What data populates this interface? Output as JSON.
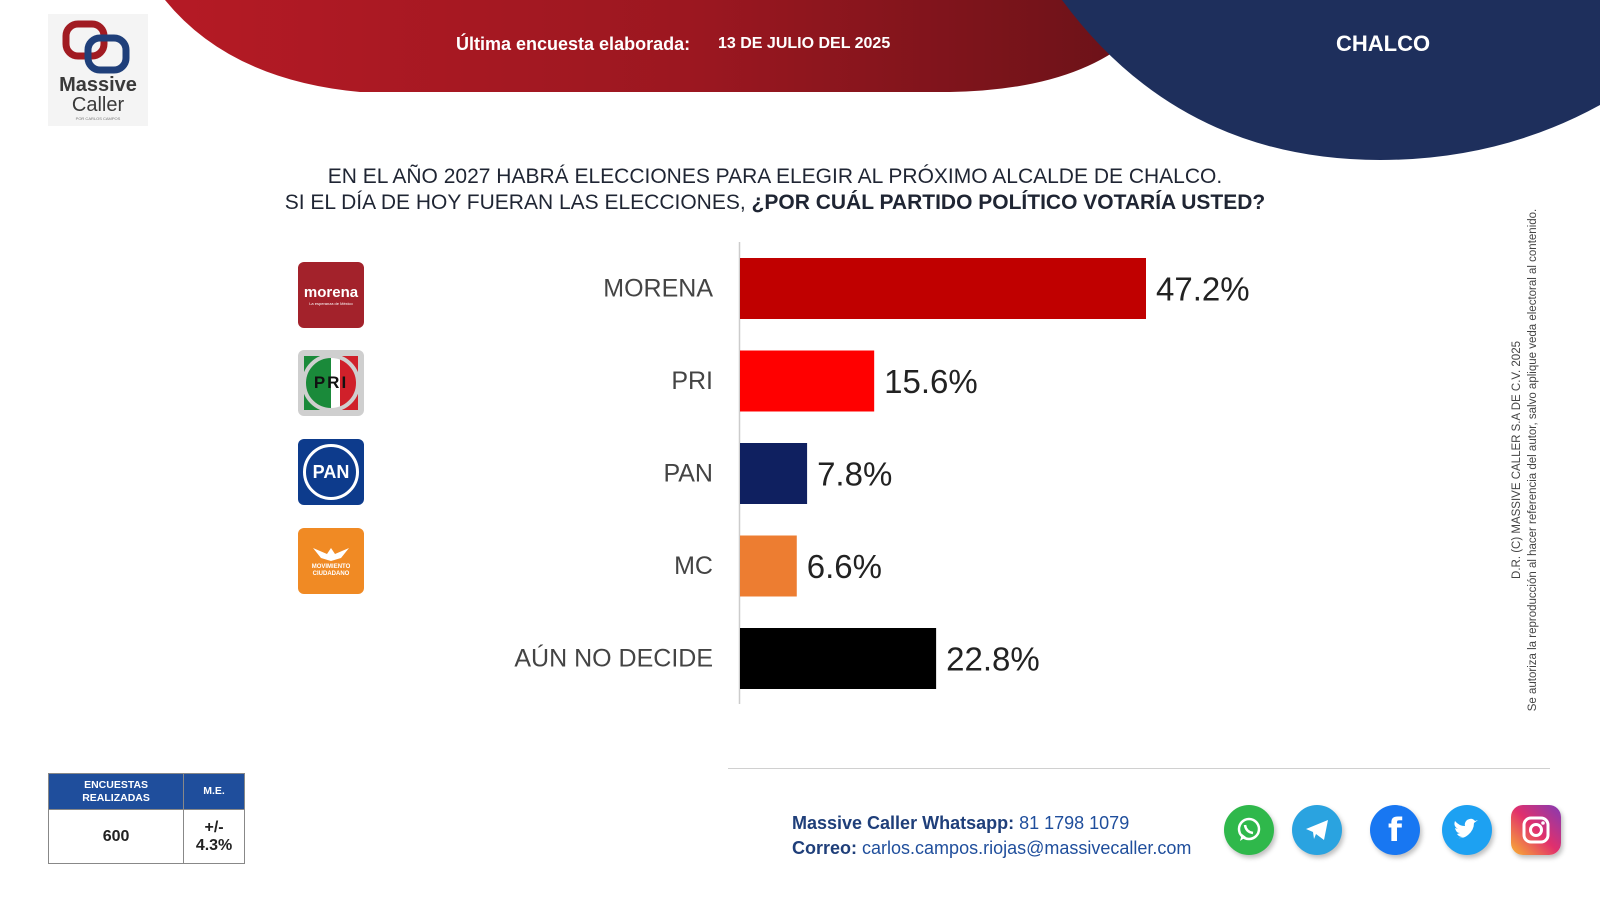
{
  "brand": {
    "name_line1": "Massive",
    "name_line2": "Caller",
    "tagline": "POR CARLOS CAMPOS"
  },
  "header": {
    "survey_label": "Última encuesta elaborada:",
    "survey_date": "13 DE JULIO DEL 2025",
    "city": "CHALCO"
  },
  "question": {
    "line1": "EN EL AÑO 2027 HABRÁ ELECCIONES PARA ELEGIR AL PRÓXIMO ALCALDE DE CHALCO.",
    "line2_plain": "SI EL DÍA DE HOY FUERAN LAS ELECCIONES, ",
    "line2_bold": "¿POR CUÁL PARTIDO POLÍTICO VOTARÍA USTED?"
  },
  "chart_data": {
    "type": "bar",
    "orientation": "horizontal",
    "categories": [
      "MORENA",
      "PRI",
      "PAN",
      "MC",
      "AÚN NO DECIDE"
    ],
    "values": [
      47.2,
      15.6,
      7.8,
      6.6,
      22.8
    ],
    "value_labels": [
      "47.2%",
      "15.6%",
      "7.8%",
      "6.6%",
      "22.8%"
    ],
    "colors": [
      "#c00000",
      "#ff0000",
      "#0f2060",
      "#ed7d31",
      "#000000"
    ],
    "xlim": [
      0,
      50
    ],
    "grid": false,
    "party_logos": [
      "morena",
      "pri",
      "pan",
      "mc",
      ""
    ]
  },
  "party_logo_text": {
    "morena": "morena",
    "morena_sub": "La esperanza de México",
    "pri": "PRI",
    "pan": "PAN",
    "mc": "MOVIMIENTO CIUDADANO"
  },
  "copyright": {
    "line1": "D.R. (C) MASSIVE CALLER S.A DE C.V. 2025",
    "line2": "Se autoriza la reproducción al hacer referencia del autor, salvo aplique veda electoral al contenido."
  },
  "stats": {
    "col1_header": "ENCUESTAS REALIZADAS",
    "col2_header": "M.E.",
    "col1_value": "600",
    "col2_value": "+/- 4.3%"
  },
  "contact": {
    "whatsapp_label": "Massive Caller Whatsapp:",
    "whatsapp_value": "81 1798 1079",
    "email_label": "Correo:",
    "email_value": "carlos.campos.riojas@massivecaller.com"
  },
  "social_icons": [
    "whatsapp-icon",
    "telegram-icon",
    "facebook-icon",
    "twitter-icon",
    "instagram-icon"
  ],
  "colors": {
    "red": "#b01820",
    "navy": "#1e2f5c",
    "blue_text": "#1f4e9c"
  }
}
